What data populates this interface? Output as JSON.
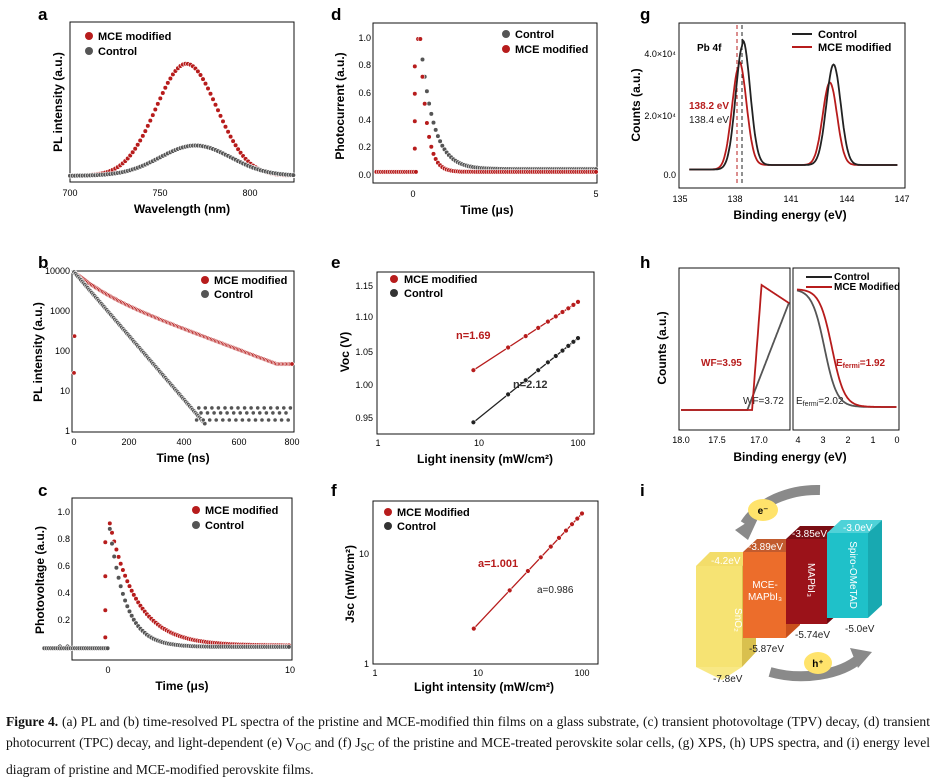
{
  "colors": {
    "red": "#b71c1c",
    "gray": "#555555",
    "dark": "#222222"
  },
  "panels": {
    "a": {
      "letter": "a",
      "xlabel": "Wavelength (nm)",
      "ylabel": "PL intensity (a.u.)",
      "xticks": [
        "700",
        "750",
        "800"
      ],
      "legend": [
        "MCE modified",
        "Control"
      ]
    },
    "b": {
      "letter": "b",
      "xlabel": "Time (ns)",
      "ylabel": "PL intensity (a.u.)",
      "xticks": [
        "0",
        "200",
        "400",
        "600",
        "800"
      ],
      "yticks": [
        "10000",
        "1000",
        "100",
        "10",
        "1"
      ],
      "legend": [
        "MCE modified",
        "Control"
      ]
    },
    "c": {
      "letter": "c",
      "xlabel": "Time (μs)",
      "ylabel": "Photovoltage (a.u.)",
      "xticks": [
        "0",
        "10"
      ],
      "yticks": [
        "0.0",
        "0.2",
        "0.4",
        "0.6",
        "0.8",
        "1.0"
      ],
      "legend": [
        "MCE modified",
        "Control"
      ]
    },
    "d": {
      "letter": "d",
      "xlabel": "Time (μs)",
      "ylabel": "Photocurrent (a.u.)",
      "xticks": [
        "0",
        "5"
      ],
      "yticks": [
        "0.0",
        "0.2",
        "0.4",
        "0.6",
        "0.8",
        "1.0"
      ],
      "legend": [
        "Control",
        "MCE modified"
      ]
    },
    "e": {
      "letter": "e",
      "xlabel": "Light inensity (mW/cm²)",
      "ylabel": "Voc (V)",
      "xticks": [
        "1",
        "10",
        "100"
      ],
      "yticks": [
        "0.95",
        "1.00",
        "1.05",
        "1.10",
        "1.15"
      ],
      "legend": [
        "MCE modified",
        "Control"
      ],
      "ann_red": "n=1.69",
      "ann_dark": "n=2.12"
    },
    "f": {
      "letter": "f",
      "xlabel": "Light intensity (mW/cm²)",
      "ylabel": "Jsc (mW/cm²)",
      "xticks": [
        "1",
        "10",
        "100"
      ],
      "yticks": [
        "10",
        "1"
      ],
      "legend": [
        "MCE Modified",
        "Control"
      ],
      "ann_red": "a=1.001",
      "ann_dark": "a=0.986"
    },
    "g": {
      "letter": "g",
      "xlabel": "Binding energy (eV)",
      "ylabel": "Counts (a.u.)",
      "xticks": [
        "135",
        "138",
        "141",
        "144",
        "147"
      ],
      "yticks": [
        "4.0×10⁴",
        "2.0×10⁴",
        "0.0"
      ],
      "legend": [
        "Control",
        "MCE modified"
      ],
      "ann_pb": "Pb 4f",
      "ann_red": "138.2 eV",
      "ann_dark": "138.4 eV"
    },
    "h": {
      "letter": "h",
      "xlabel": "Binding energy (eV)",
      "ylabel": "Counts (a.u.)",
      "xticks_left": [
        "18.0",
        "17.5",
        "17.0"
      ],
      "xticks_right": [
        "4",
        "3",
        "2",
        "1",
        "0"
      ],
      "legend": [
        "Control",
        "MCE Modified"
      ],
      "wf_red": "WF=3.95",
      "wf_dark": "WF=3.72",
      "ef_red_pre": "E",
      "ef_red_sub": "fermi",
      "ef_red_post": "=1.92",
      "ef_dark_pre": "E",
      "ef_dark_sub": "fermi",
      "ef_dark_post": "=2.02"
    },
    "i": {
      "letter": "i",
      "electron": "e⁻",
      "hole": "h⁺",
      "sno2": "SnO₂",
      "mce_a": "MCE-",
      "mce_b": "MAPbI₃",
      "mapbi": "MAPbI₃",
      "spiro": "Spiro-OMeTAD",
      "e_sno2_top": "-4.2eV",
      "e_mce_top": "-3.89eV",
      "e_mapbi_top": "-3.85eV",
      "e_spiro_top": "-3.0eV",
      "e_sno2_bot": "-7.8eV",
      "e_mce_bot": "-5.87eV",
      "e_mapbi_bot": "-5.74eV",
      "e_spiro_bot": "-5.0eV"
    }
  },
  "chart_data": [
    {
      "type": "scatter",
      "panel": "a",
      "xlabel": "Wavelength (nm)",
      "ylabel": "PL intensity (a.u.)",
      "xlim": [
        700,
        825
      ],
      "series": [
        {
          "name": "MCE modified",
          "peak_x": 765,
          "peak_y": 1.0
        },
        {
          "name": "Control",
          "peak_x": 770,
          "peak_y": 0.27
        }
      ]
    },
    {
      "type": "scatter",
      "panel": "b",
      "xlabel": "Time (ns)",
      "ylabel": "PL intensity (a.u.)",
      "xlim": [
        0,
        800
      ],
      "ylim": [
        1,
        10000
      ],
      "yscale": "log",
      "series": [
        {
          "name": "MCE modified",
          "x": [
            0,
            200,
            400,
            600,
            800
          ],
          "y": [
            10000,
            2500,
            600,
            200,
            80
          ]
        },
        {
          "name": "Control",
          "x": [
            0,
            200,
            400,
            500
          ],
          "y": [
            10000,
            300,
            10,
            2
          ]
        }
      ]
    },
    {
      "type": "scatter",
      "panel": "c",
      "xlabel": "Time (μs)",
      "ylabel": "Photovoltage (a.u.)",
      "xlim": [
        -3,
        10
      ],
      "ylim": [
        0,
        1.0
      ],
      "series": [
        {
          "name": "MCE modified",
          "x": [
            0,
            1,
            2,
            3,
            5,
            10
          ],
          "y": [
            1.0,
            0.55,
            0.3,
            0.15,
            0.07,
            0.04
          ]
        },
        {
          "name": "Control",
          "x": [
            0,
            1,
            2,
            3,
            5,
            10
          ],
          "y": [
            1.0,
            0.35,
            0.12,
            0.06,
            0.04,
            0.03
          ]
        }
      ]
    },
    {
      "type": "scatter",
      "panel": "d",
      "xlabel": "Time (μs)",
      "ylabel": "Photocurrent (a.u.)",
      "xlim": [
        -1,
        5
      ],
      "ylim": [
        0,
        1.0
      ],
      "series": [
        {
          "name": "Control",
          "x": [
            0.3,
            0.6,
            1,
            2,
            5
          ],
          "y": [
            1.0,
            0.5,
            0.1,
            0.05,
            0.05
          ]
        },
        {
          "name": "MCE modified",
          "x": [
            0.3,
            0.5,
            1,
            2,
            5
          ],
          "y": [
            1.0,
            0.3,
            0.03,
            0.03,
            0.03
          ]
        }
      ]
    },
    {
      "type": "scatter",
      "panel": "e",
      "xlabel": "Light inensity (mW/cm²)",
      "ylabel": "Voc (V)",
      "xscale": "log",
      "xlim": [
        1,
        200
      ],
      "ylim": [
        0.93,
        1.18
      ],
      "series": [
        {
          "name": "MCE modified",
          "x": [
            9,
            20,
            100
          ],
          "y": [
            1.027,
            1.055,
            1.13
          ]
        },
        {
          "name": "Control",
          "x": [
            9,
            20,
            100
          ],
          "y": [
            0.948,
            0.985,
            1.078
          ]
        }
      ]
    },
    {
      "type": "scatter",
      "panel": "f",
      "xlabel": "Light intensity (mW/cm²)",
      "ylabel": "Jsc (mW/cm²)",
      "xscale": "log",
      "yscale": "log",
      "xlim": [
        1,
        200
      ],
      "ylim": [
        1,
        30
      ],
      "series": [
        {
          "name": "MCE Modified",
          "x": [
            9,
            20,
            100
          ],
          "y": [
            2.1,
            4.6,
            22
          ]
        },
        {
          "name": "Control",
          "x": [
            9,
            20,
            100
          ],
          "y": [
            2.1,
            4.5,
            21
          ]
        }
      ]
    },
    {
      "type": "line",
      "panel": "g",
      "xlabel": "Binding energy (eV)",
      "ylabel": "Counts (a.u.)",
      "xlim": [
        135,
        147
      ],
      "ylim": [
        -5000,
        48000
      ],
      "series": [
        {
          "name": "Control",
          "x": [
            138.4,
            143.3
          ],
          "y": [
            43000,
            36000
          ]
        },
        {
          "name": "MCE modified",
          "x": [
            138.2,
            143.1
          ],
          "y": [
            36000,
            30000
          ]
        }
      ]
    },
    {
      "type": "line",
      "panel": "h",
      "xlabel": "Binding energy (eV)",
      "ylabel": "Counts (a.u.)",
      "series": [
        {
          "name": "Control"
        },
        {
          "name": "MCE Modified"
        }
      ]
    }
  ],
  "caption": {
    "label": "Figure 4.",
    "text": " (a) PL and (b) time-resolved PL spectra of the pristine and MCE-modified thin films on a glass substrate, (c) transient photovoltage (TPV) decay, (d) transient photocurrent (TPC) decay, and light-dependent (e) V",
    "sub1": "OC",
    "mid": " and (f) J",
    "sub2": "SC",
    "tail": " of the pristine and MCE-treated perovskite solar cells, (g) XPS, (h) UPS spectra, and (i) energy level diagram of pristine and MCE-modified perovskite films."
  }
}
